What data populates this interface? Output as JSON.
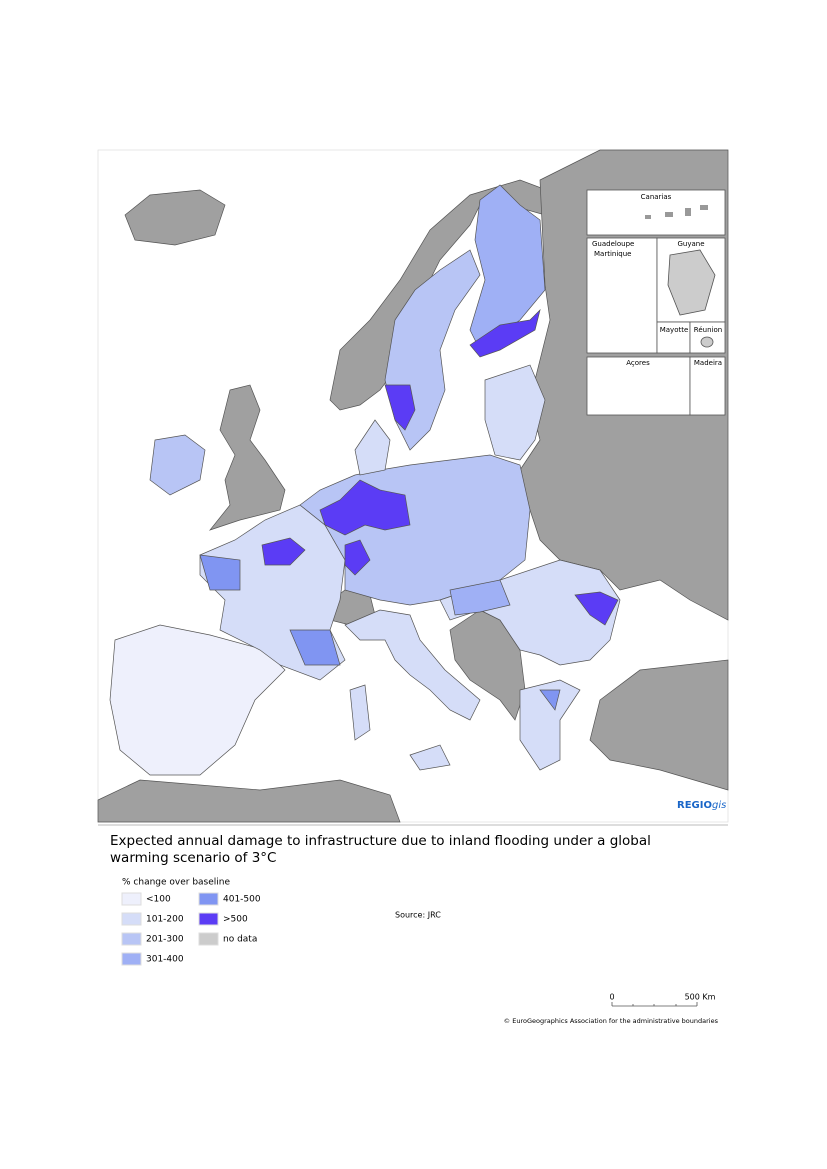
{
  "map": {
    "insets": {
      "canarias": "Canarias",
      "guadeloupe": "Guadeloupe",
      "martinique": "Martinique",
      "guyane": "Guyane",
      "mayotte": "Mayotte",
      "reunion": "Réunion",
      "acores": "Açores",
      "madeira": "Madeira"
    },
    "logo": {
      "bold": "REGIO",
      "italic": "gis"
    }
  },
  "title": "Expected annual damage to infrastructure due to inland flooding under a global warming scenario of 3°C",
  "legend": {
    "title": "% change over baseline",
    "items": [
      {
        "label": "<100",
        "color": "#eef0fc"
      },
      {
        "label": "101-200",
        "color": "#d5ddf8"
      },
      {
        "label": "201-300",
        "color": "#b8c5f5"
      },
      {
        "label": "301-400",
        "color": "#9fb0f5"
      },
      {
        "label": "401-500",
        "color": "#8095f2"
      },
      {
        "label": ">500",
        "color": "#5b3cf5"
      },
      {
        "label": "no data",
        "color": "#cccccc"
      }
    ]
  },
  "source": "Source: JRC",
  "scale_bar": {
    "start": "0",
    "end": "500 Km"
  },
  "copyright": "© EuroGeographics Association for the administrative boundaries"
}
